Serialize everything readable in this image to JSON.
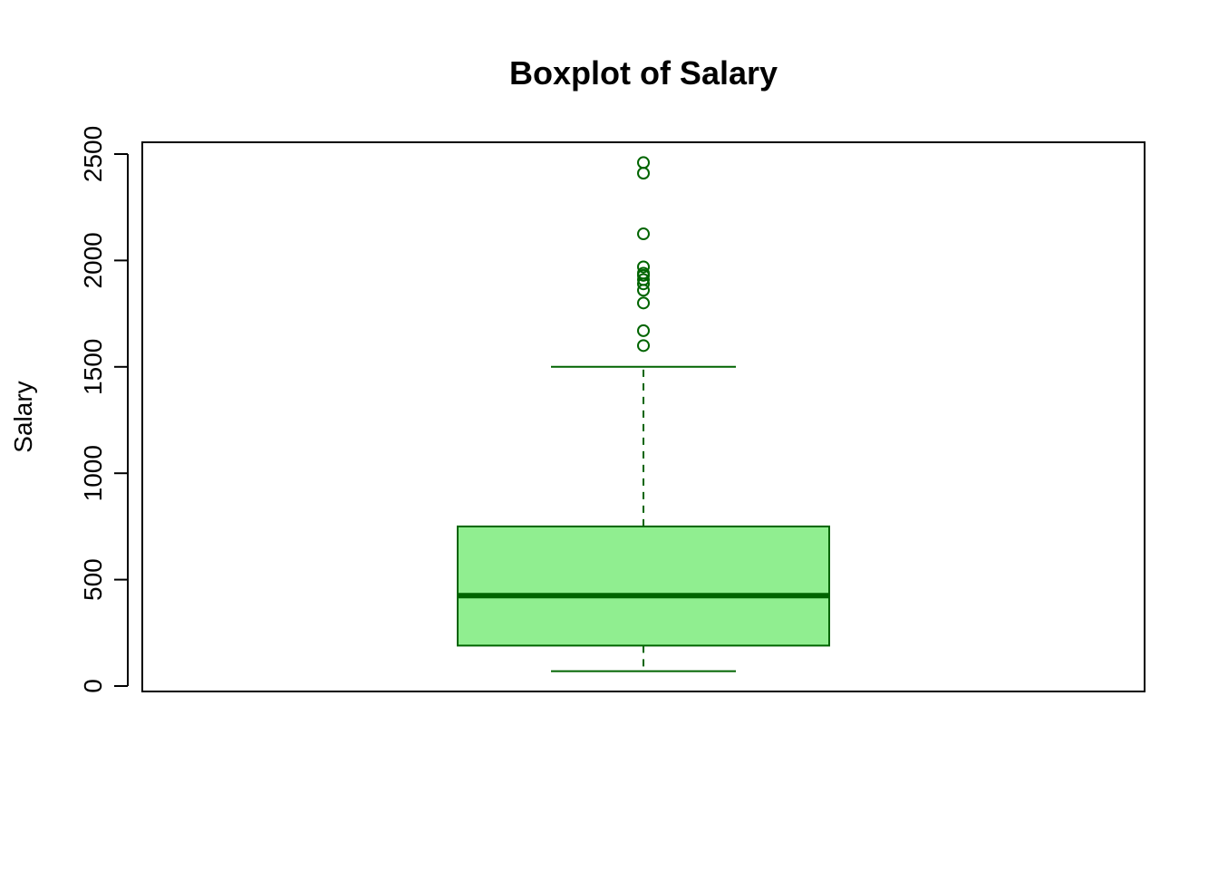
{
  "chart_data": {
    "type": "boxplot",
    "title": "Boxplot of Salary",
    "xlabel": "",
    "ylabel": "Salary",
    "ylim": [
      0,
      2500
    ],
    "y_ticks": [
      0,
      500,
      1000,
      1500,
      2000,
      2500
    ],
    "y_tick_labels": [
      "0",
      "500",
      "1000",
      "1500",
      "2000",
      "2500"
    ],
    "grid": false,
    "boxes": [
      {
        "min": 70,
        "q1": 190,
        "median": 425,
        "q3": 750,
        "max": 1500,
        "outliers": [
          1600,
          1670,
          1800,
          1860,
          1890,
          1910,
          1930,
          1940,
          1970,
          2125,
          2410,
          2460
        ]
      }
    ],
    "colors": {
      "box_fill": "#90EE90",
      "box_border": "#006400",
      "median_line": "#006400",
      "whisker": "#006400",
      "outlier": "#006400",
      "axis": "#000000"
    }
  }
}
